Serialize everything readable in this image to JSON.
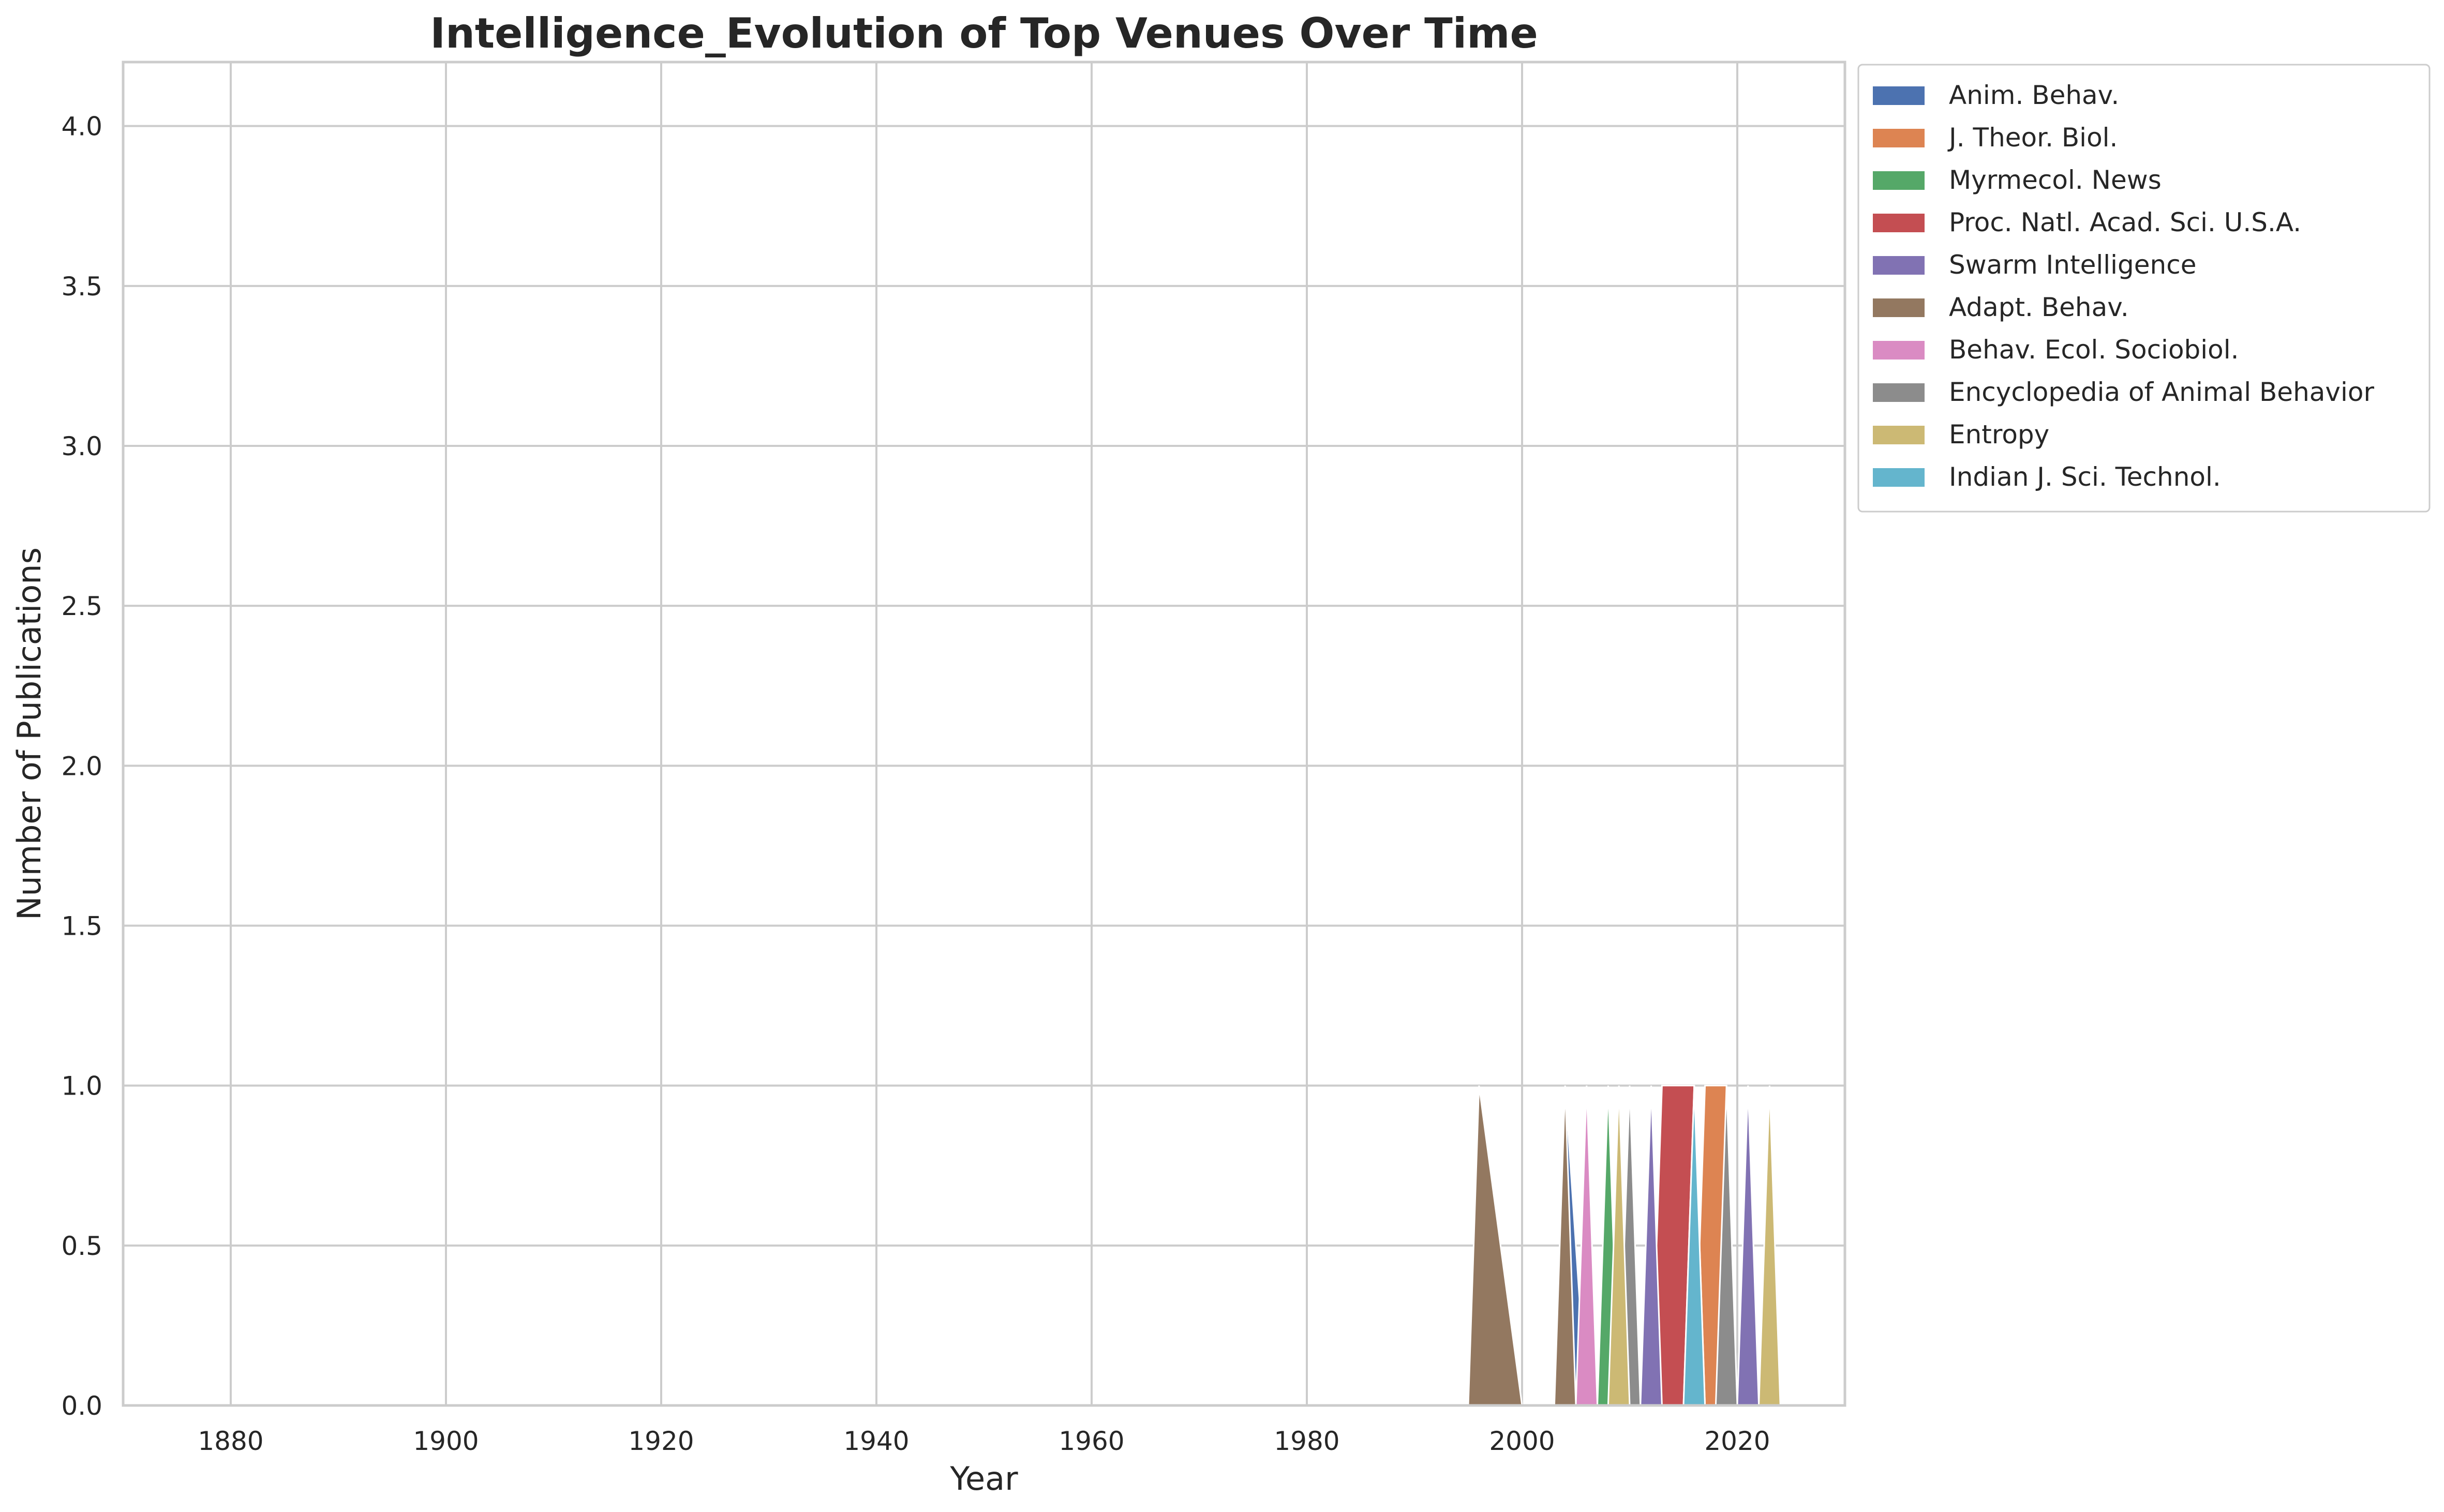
{
  "chart_data": {
    "type": "area",
    "title": "Intelligence_Evolution of Top Venues Over Time",
    "xlabel": "Year",
    "ylabel": "Number of Publications",
    "xlim": [
      1870,
      2030
    ],
    "ylim": [
      0,
      4.2
    ],
    "xticks": [
      1880,
      1900,
      1920,
      1940,
      1960,
      1980,
      2000,
      2020
    ],
    "yticks": [
      0.0,
      0.5,
      1.0,
      1.5,
      2.0,
      2.5,
      3.0,
      3.5,
      4.0
    ],
    "xtick_labels": [
      "1880",
      "1900",
      "1920",
      "1940",
      "1960",
      "1980",
      "2000",
      "2020"
    ],
    "ytick_labels": [
      "0.0",
      "0.5",
      "1.0",
      "1.5",
      "2.0",
      "2.5",
      "3.0",
      "3.5",
      "4.0"
    ],
    "grid": true,
    "legend_position": "outside upper right",
    "series": [
      {
        "name": "Anim. Behav.",
        "color": "#4c72b0",
        "points": [
          [
            2003,
            0
          ],
          [
            2004,
            1
          ],
          [
            2006,
            0
          ],
          [
            2012,
            0
          ],
          [
            2013,
            1
          ],
          [
            2014,
            0
          ],
          [
            2015,
            0
          ],
          [
            2016,
            1
          ],
          [
            2017,
            0
          ]
        ]
      },
      {
        "name": "J. Theor. Biol.",
        "color": "#dd8452",
        "points": [
          [
            2016,
            0
          ],
          [
            2017,
            1
          ],
          [
            2019,
            1
          ],
          [
            2019,
            0
          ]
        ]
      },
      {
        "name": "Myrmecol. News",
        "color": "#55a868",
        "points": [
          [
            2007,
            0
          ],
          [
            2008,
            1
          ],
          [
            2009,
            0
          ],
          [
            2020,
            0
          ],
          [
            2021,
            1
          ],
          [
            2022,
            0
          ]
        ]
      },
      {
        "name": "Proc. Natl. Acad. Sci. U.S.A.",
        "color": "#c44e52",
        "points": [
          [
            2012,
            0
          ],
          [
            2013,
            1
          ],
          [
            2016,
            1
          ],
          [
            2016,
            0
          ]
        ]
      },
      {
        "name": "Swarm Intelligence",
        "color": "#8172b3",
        "points": [
          [
            2011,
            0
          ],
          [
            2012,
            1
          ],
          [
            2013,
            0
          ],
          [
            2020,
            0
          ],
          [
            2021,
            1
          ],
          [
            2022,
            0
          ]
        ]
      },
      {
        "name": "Adapt. Behav.",
        "color": "#937860",
        "points": [
          [
            1995,
            0
          ],
          [
            1996,
            1
          ],
          [
            2000,
            0
          ],
          [
            2003,
            0
          ],
          [
            2004,
            1
          ],
          [
            2005,
            0
          ]
        ]
      },
      {
        "name": "Behav. Ecol. Sociobiol.",
        "color": "#da8bc3",
        "points": [
          [
            2005,
            0
          ],
          [
            2006,
            1
          ],
          [
            2007,
            0
          ],
          [
            2015,
            0
          ],
          [
            2016,
            1
          ],
          [
            2017,
            0
          ]
        ]
      },
      {
        "name": "Encyclopedia of Animal Behavior",
        "color": "#8c8c8c",
        "points": [
          [
            2009,
            0
          ],
          [
            2010,
            1
          ],
          [
            2011,
            0
          ],
          [
            2018,
            0
          ],
          [
            2019,
            1
          ],
          [
            2020,
            0
          ]
        ]
      },
      {
        "name": "Entropy",
        "color": "#ccb974",
        "points": [
          [
            2008,
            0
          ],
          [
            2009,
            1
          ],
          [
            2010,
            0
          ],
          [
            2022,
            0
          ],
          [
            2023,
            1
          ],
          [
            2024,
            0
          ]
        ]
      },
      {
        "name": "Indian J. Sci. Technol.",
        "color": "#64b5cd",
        "points": [
          [
            2015,
            0
          ],
          [
            2016,
            1
          ],
          [
            2017,
            0
          ]
        ]
      }
    ]
  }
}
